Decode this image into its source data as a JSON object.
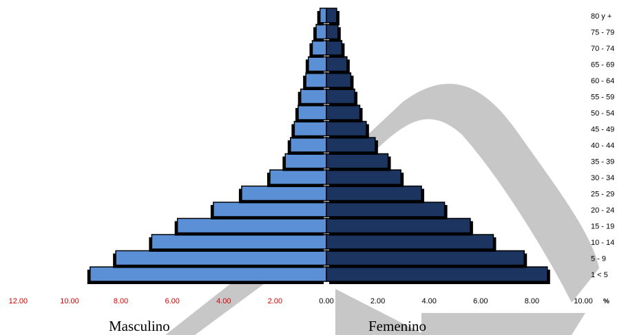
{
  "chart_data": {
    "type": "bar",
    "orientation": "horizontal-population-pyramid",
    "categories": [
      "1 < 5",
      "5 - 9",
      "10 - 14",
      "15 - 19",
      "20 - 24",
      "25 - 29",
      "30 - 34",
      "35 - 39",
      "40 - 44",
      "45 - 49",
      "50 - 54",
      "55 - 59",
      "60 - 64",
      "65 - 69",
      "70 - 74",
      "75 - 79",
      "80 y +"
    ],
    "series": [
      {
        "name": "Masculino",
        "color": "#5b8fd6",
        "values": [
          9.2,
          8.2,
          6.8,
          5.8,
          4.4,
          3.3,
          2.2,
          1.6,
          1.4,
          1.25,
          1.1,
          1.0,
          0.8,
          0.7,
          0.55,
          0.4,
          0.25
        ]
      },
      {
        "name": "Femenino",
        "color": "#1b3560",
        "values": [
          8.6,
          7.7,
          6.5,
          5.6,
          4.6,
          3.7,
          2.9,
          2.4,
          1.9,
          1.55,
          1.3,
          1.1,
          0.95,
          0.8,
          0.6,
          0.45,
          0.4
        ]
      }
    ],
    "x_tick_labels_left": [
      "12.00",
      "10.00",
      "8.00",
      "6.00",
      "4.00",
      "2.00"
    ],
    "x_tick_labels_right": [
      "0.00",
      "2.00",
      "4.00",
      "6.00",
      "8.00",
      "10.00"
    ],
    "x_unit": "%",
    "xlim": [
      -12,
      10
    ],
    "tick_color_left": "#d40000",
    "tick_color_right": "#000000",
    "grid": false,
    "watermark": "P"
  }
}
